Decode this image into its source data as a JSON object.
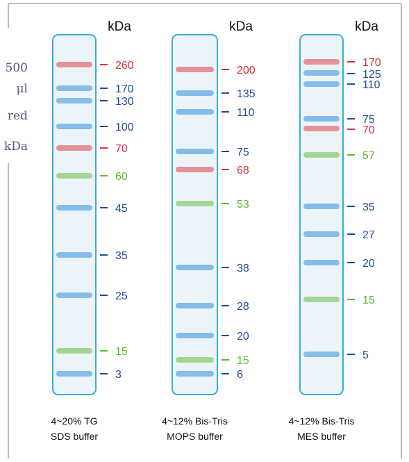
{
  "side_note": [
    "500",
    "μl",
    "red",
    "kDa"
  ],
  "lanes": [
    {
      "unit": "kDa",
      "caption": [
        "4~20% TG",
        "SDS buffer"
      ],
      "markers": [
        {
          "label": "260",
          "color": "#d9303c"
        },
        {
          "label": "170",
          "color": "#1f4b9a"
        },
        {
          "label": "130",
          "color": "#1f4b9a"
        },
        {
          "label": "100",
          "color": "#1f4b9a"
        },
        {
          "label": "70",
          "color": "#d9303c"
        },
        {
          "label": "60",
          "color": "#5cb82e"
        },
        {
          "label": "45",
          "color": "#1f4b9a"
        },
        {
          "label": "35",
          "color": "#1f4b9a"
        },
        {
          "label": "25",
          "color": "#1f4b9a"
        },
        {
          "label": "15",
          "color": "#5cb82e"
        },
        {
          "label": "3",
          "color": "#1f4b9a"
        }
      ]
    },
    {
      "unit": "kDa",
      "caption": [
        "4~12% Bis-Tris",
        "MOPS buffer"
      ],
      "markers": [
        {
          "label": "200",
          "color": "#d9303c"
        },
        {
          "label": "135",
          "color": "#1f4b9a"
        },
        {
          "label": "110",
          "color": "#1f4b9a"
        },
        {
          "label": "75",
          "color": "#1f4b9a"
        },
        {
          "label": "68",
          "color": "#d9303c"
        },
        {
          "label": "53",
          "color": "#5cb82e"
        },
        {
          "label": "38",
          "color": "#1f4b9a"
        },
        {
          "label": "28",
          "color": "#1f4b9a"
        },
        {
          "label": "20",
          "color": "#1f4b9a"
        },
        {
          "label": "15",
          "color": "#5cb82e"
        },
        {
          "label": "6",
          "color": "#1f4b9a"
        }
      ]
    },
    {
      "unit": "kDa",
      "caption": [
        "4~12% Bis-Tris",
        "MES buffer"
      ],
      "markers": [
        {
          "label": "170",
          "color": "#d9303c"
        },
        {
          "label": "125",
          "color": "#1f4b9a"
        },
        {
          "label": "110",
          "color": "#1f4b9a"
        },
        {
          "label": "75",
          "color": "#1f4b9a"
        },
        {
          "label": "70",
          "color": "#d9303c"
        },
        {
          "label": "57",
          "color": "#5cb82e"
        },
        {
          "label": "35",
          "color": "#1f4b9a"
        },
        {
          "label": "27",
          "color": "#1f4b9a"
        },
        {
          "label": "20",
          "color": "#1f4b9a"
        },
        {
          "label": "15",
          "color": "#5cb82e"
        },
        {
          "label": "5",
          "color": "#1f4b9a"
        }
      ]
    }
  ]
}
